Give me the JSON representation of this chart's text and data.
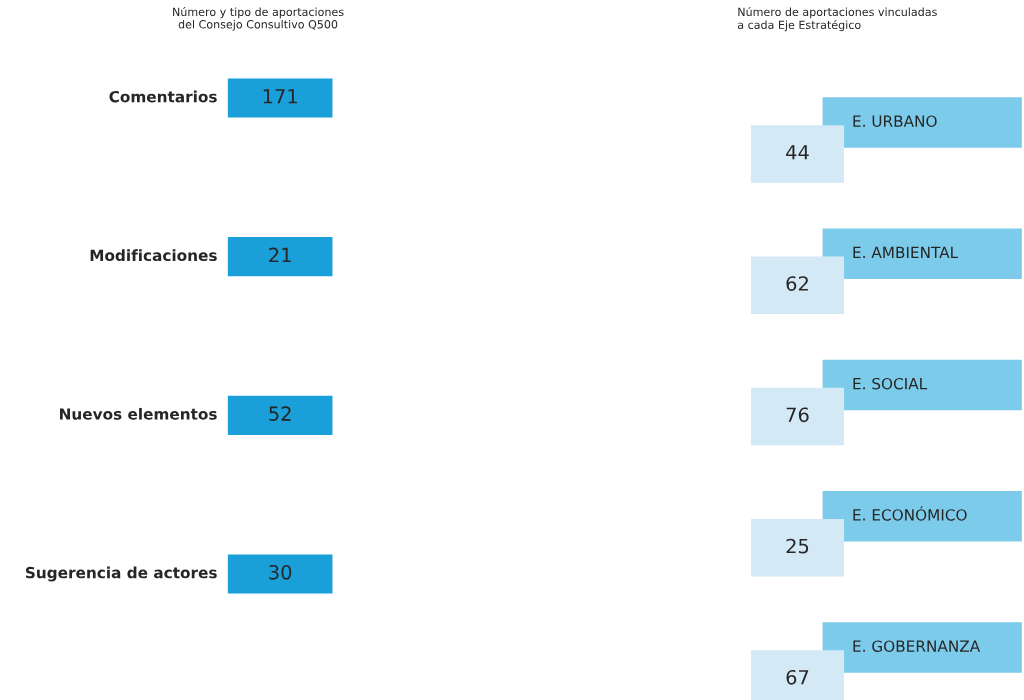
{
  "chart_data": [
    {
      "type": "other",
      "title": "Número y tipo de aportaciones\ndel Consejo Consultivo Q500",
      "categories": [
        "Comentarios",
        "Modificaciones",
        "Nuevos elementos",
        "Sugerencia de actores"
      ],
      "values": [
        171,
        21,
        52,
        30
      ],
      "data_labels": true,
      "color": "#1a9fd9"
    },
    {
      "type": "other",
      "title": "Número de aportaciones vinculadas\na cada Eje Estratégico",
      "categories": [
        "E. URBANO",
        "E. AMBIENTAL",
        "E. SOCIAL",
        "E. ECONÓMICO",
        "E. GOBERNANZA"
      ],
      "values": [
        44,
        62,
        76,
        25,
        67
      ],
      "data_labels": true,
      "color": "#d3e9f5"
    }
  ]
}
